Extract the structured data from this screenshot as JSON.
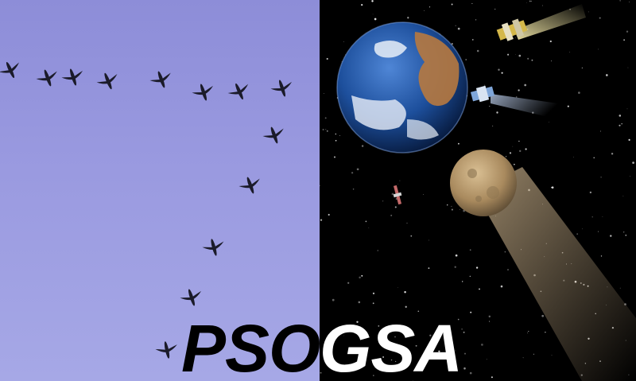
{
  "title": {
    "left_part": "PSO",
    "right_part": "GSA"
  },
  "colors": {
    "sky": "#9a9ae0",
    "space": "#000000",
    "bird": "#1b1b2a",
    "title_on_sky": "#000000",
    "title_on_space": "#ffffff"
  },
  "scenes": {
    "left": "birds-flying-in-v-formation",
    "right": "space-with-earth-moon-satellites"
  }
}
